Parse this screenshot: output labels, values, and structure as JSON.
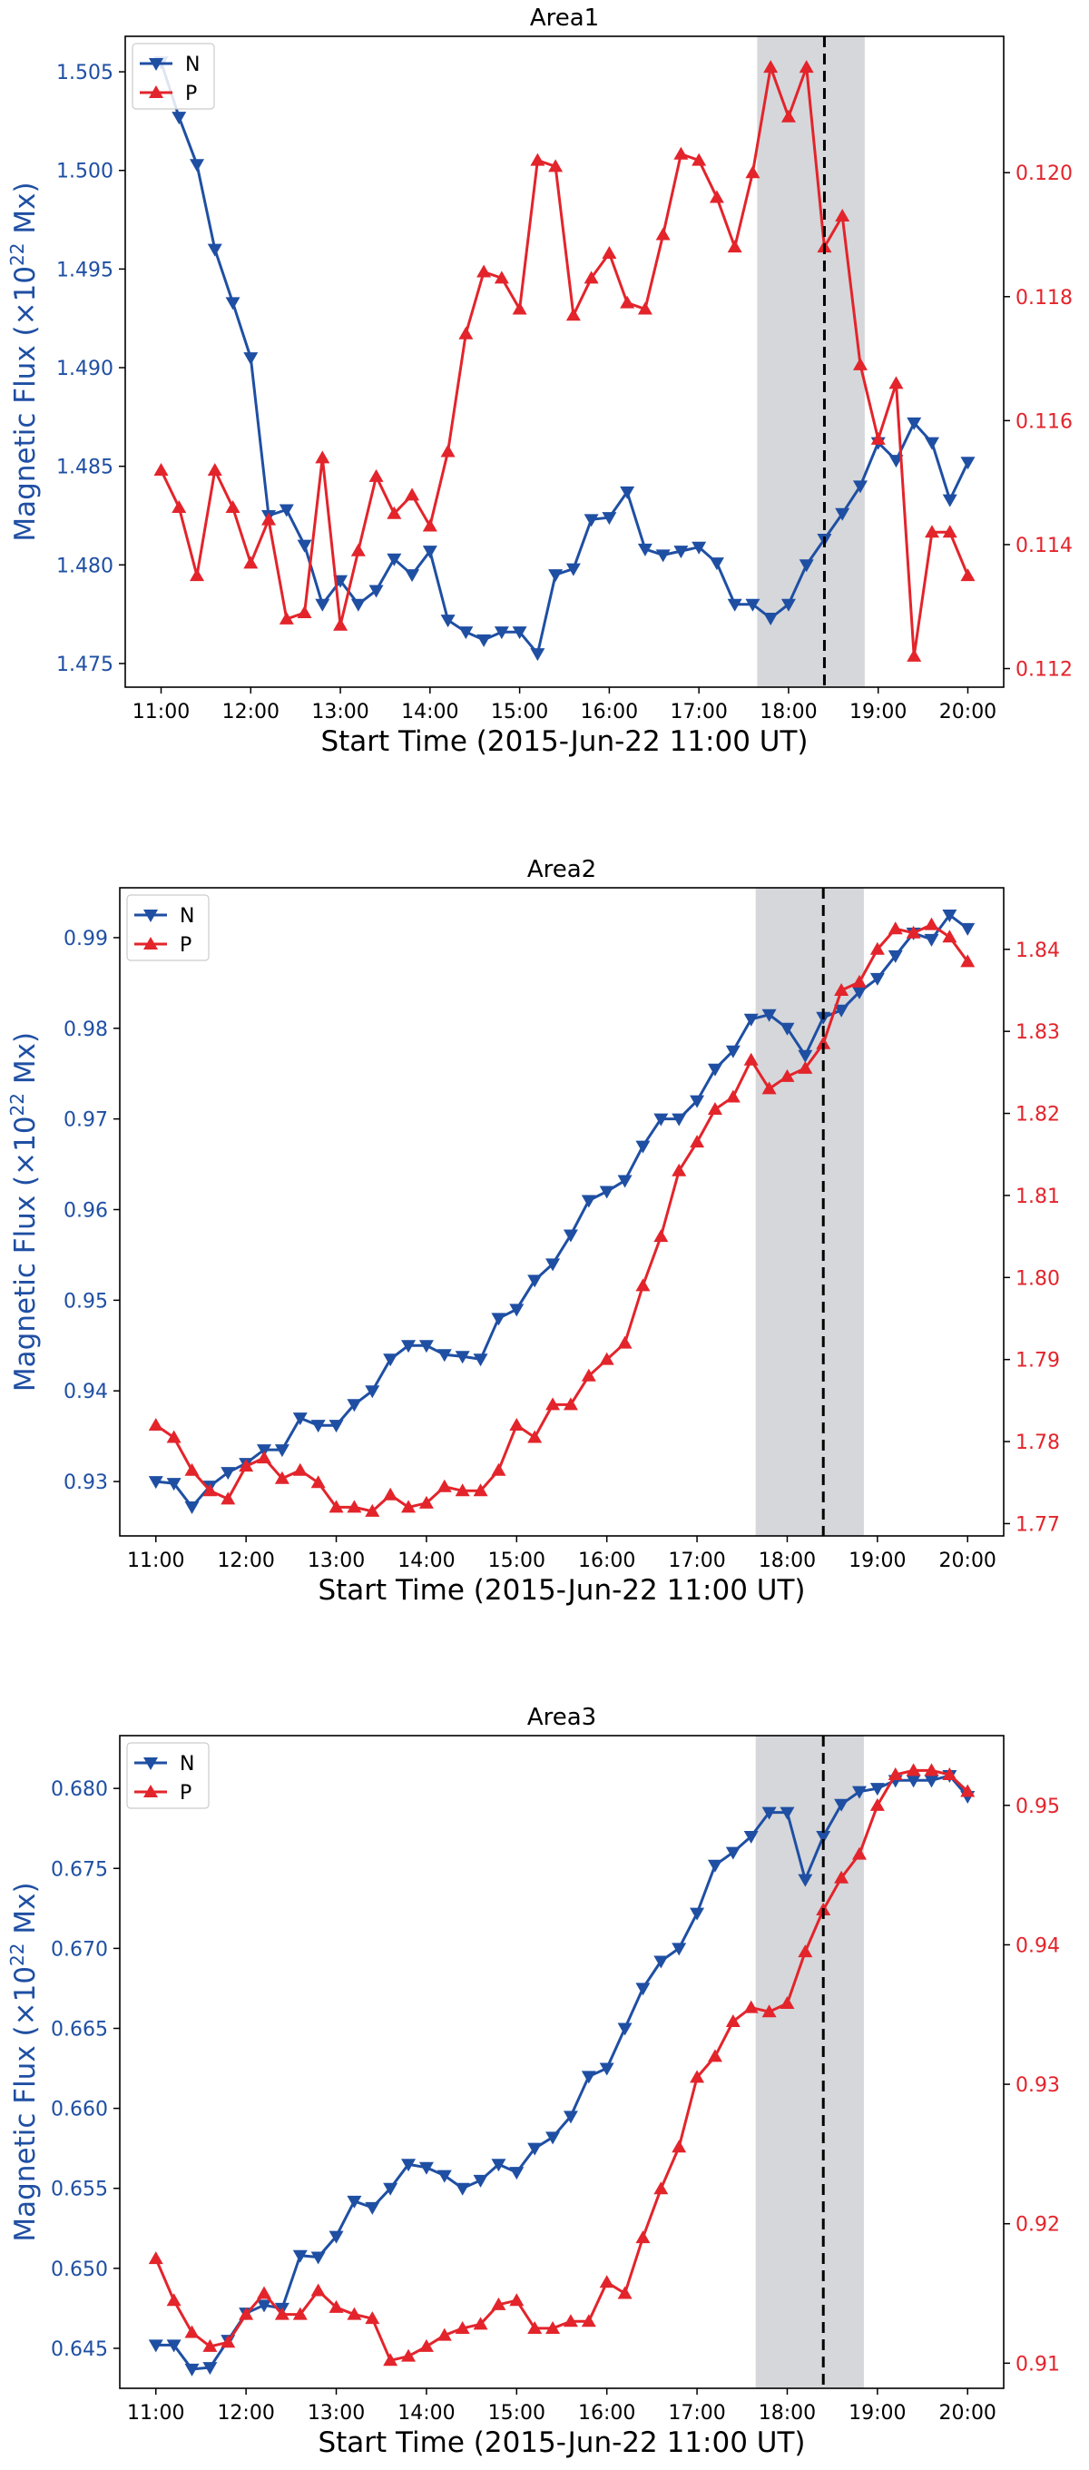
{
  "colors": {
    "negative": "#1f4fa3",
    "positive": "#e3242b",
    "shade": "#d5d7da",
    "axis": "#000000"
  },
  "common": {
    "xlabel": "Start Time (2015-Jun-22 11:00 UT)",
    "ylabel_left_prefix": "Magnetic Flux (×10",
    "ylabel_left_exp": "22",
    "ylabel_left_suffix": " Mx)",
    "xticks": [
      "11:00",
      "12:00",
      "13:00",
      "14:00",
      "15:00",
      "16:00",
      "17:00",
      "18:00",
      "19:00",
      "20:00"
    ],
    "shade_range_hours": [
      17.65,
      18.85
    ],
    "event_time_hours": 18.4
  },
  "chart_data": [
    {
      "type": "line",
      "title": "Area1",
      "legend": [
        "N",
        "P"
      ],
      "xlim": [
        10.6,
        20.4
      ],
      "ylim_left": [
        1.4738,
        1.5068
      ],
      "ylim_right": [
        0.1117,
        0.1222
      ],
      "yticks_left": [
        "1.475",
        "1.480",
        "1.485",
        "1.490",
        "1.495",
        "1.500",
        "1.505"
      ],
      "yticks_right": [
        "0.112",
        "0.114",
        "0.116",
        "0.118",
        "0.120"
      ],
      "x": [
        11.0,
        11.2,
        11.4,
        11.6,
        11.8,
        12.0,
        12.2,
        12.4,
        12.6,
        12.8,
        13.0,
        13.2,
        13.4,
        13.6,
        13.8,
        14.0,
        14.2,
        14.4,
        14.6,
        14.8,
        15.0,
        15.2,
        15.4,
        15.6,
        15.8,
        16.0,
        16.2,
        16.4,
        16.6,
        16.8,
        17.0,
        17.2,
        17.4,
        17.6,
        17.8,
        18.0,
        18.2,
        18.4,
        18.6,
        18.8,
        19.0,
        19.2,
        19.4,
        19.6,
        19.8,
        20.0
      ],
      "series": [
        {
          "name": "N",
          "axis": "left",
          "marker": "triangle-down",
          "values": [
            1.5055,
            1.5027,
            1.5003,
            1.496,
            1.4933,
            1.4905,
            1.4825,
            1.4828,
            1.481,
            1.478,
            1.4792,
            1.478,
            1.4787,
            1.4803,
            1.4795,
            1.4807,
            1.4772,
            1.4766,
            1.4762,
            1.4766,
            1.4766,
            1.4755,
            1.4795,
            1.4798,
            1.4823,
            1.4824,
            1.4837,
            1.4808,
            1.4805,
            1.4807,
            1.4809,
            1.4801,
            1.478,
            1.478,
            1.4773,
            1.478,
            1.48,
            1.4813,
            1.4826,
            1.484,
            1.4862,
            1.4853,
            1.4872,
            1.4862,
            1.4833,
            1.4852
          ]
        },
        {
          "name": "P",
          "axis": "right",
          "marker": "triangle-up",
          "values": [
            0.1152,
            0.1146,
            0.1135,
            0.1152,
            0.1146,
            0.1137,
            0.1144,
            0.1128,
            0.1129,
            0.1154,
            0.1127,
            0.1139,
            0.1151,
            0.1145,
            0.1148,
            0.1143,
            0.1155,
            0.1174,
            0.1184,
            0.1183,
            0.1178,
            0.1202,
            0.1201,
            0.1177,
            0.1183,
            0.1187,
            0.1179,
            0.1178,
            0.119,
            0.1203,
            0.1202,
            0.1196,
            0.1188,
            0.12,
            0.1217,
            0.1209,
            0.1217,
            0.1188,
            0.1193,
            0.1169,
            0.1157,
            0.1166,
            0.1122,
            0.1142,
            0.1142,
            0.1135
          ]
        }
      ]
    },
    {
      "type": "line",
      "title": "Area2",
      "legend": [
        "N",
        "P"
      ],
      "xlim": [
        10.6,
        20.4
      ],
      "ylim_left": [
        0.924,
        0.9955
      ],
      "ylim_right": [
        1.7685,
        1.8475
      ],
      "yticks_left": [
        "0.93",
        "0.94",
        "0.95",
        "0.96",
        "0.97",
        "0.98",
        "0.99"
      ],
      "yticks_right": [
        "1.77",
        "1.78",
        "1.79",
        "1.80",
        "1.81",
        "1.82",
        "1.83",
        "1.84"
      ],
      "x": [
        11.0,
        11.2,
        11.4,
        11.6,
        11.8,
        12.0,
        12.2,
        12.4,
        12.6,
        12.8,
        13.0,
        13.2,
        13.4,
        13.6,
        13.8,
        14.0,
        14.2,
        14.4,
        14.6,
        14.8,
        15.0,
        15.2,
        15.4,
        15.6,
        15.8,
        16.0,
        16.2,
        16.4,
        16.6,
        16.8,
        17.0,
        17.2,
        17.4,
        17.6,
        17.8,
        18.0,
        18.2,
        18.4,
        18.6,
        18.8,
        19.0,
        19.2,
        19.4,
        19.6,
        19.8,
        20.0
      ],
      "series": [
        {
          "name": "N",
          "axis": "left",
          "marker": "triangle-down",
          "values": [
            0.93,
            0.9298,
            0.9272,
            0.9295,
            0.931,
            0.932,
            0.9335,
            0.9335,
            0.937,
            0.9362,
            0.9362,
            0.9385,
            0.94,
            0.9435,
            0.945,
            0.945,
            0.944,
            0.9438,
            0.9435,
            0.948,
            0.949,
            0.9522,
            0.954,
            0.9572,
            0.961,
            0.962,
            0.9632,
            0.967,
            0.97,
            0.97,
            0.972,
            0.9755,
            0.9775,
            0.981,
            0.9815,
            0.98,
            0.977,
            0.9812,
            0.982,
            0.984,
            0.9855,
            0.988,
            0.9905,
            0.9898,
            0.9925,
            0.991
          ]
        },
        {
          "name": "P",
          "axis": "right",
          "marker": "triangle-up",
          "values": [
            1.782,
            1.7805,
            1.7765,
            1.774,
            1.773,
            1.777,
            1.778,
            1.7755,
            1.7765,
            1.775,
            1.772,
            1.772,
            1.7715,
            1.7735,
            1.772,
            1.7725,
            1.7745,
            1.774,
            1.774,
            1.7765,
            1.782,
            1.7805,
            1.7845,
            1.7845,
            1.788,
            1.79,
            1.792,
            1.799,
            1.805,
            1.813,
            1.8165,
            1.8205,
            1.822,
            1.8265,
            1.823,
            1.8245,
            1.8255,
            1.8285,
            1.835,
            1.836,
            1.84,
            1.8425,
            1.842,
            1.843,
            1.8415,
            1.8385
          ]
        }
      ]
    },
    {
      "type": "line",
      "title": "Area3",
      "legend": [
        "N",
        "P"
      ],
      "xlim": [
        10.6,
        20.4
      ],
      "ylim_left": [
        0.6425,
        0.6833
      ],
      "ylim_right": [
        0.9082,
        0.955
      ],
      "yticks_left": [
        "0.645",
        "0.650",
        "0.655",
        "0.660",
        "0.665",
        "0.670",
        "0.675",
        "0.680"
      ],
      "yticks_right": [
        "0.91",
        "0.92",
        "0.93",
        "0.94",
        "0.95"
      ],
      "x": [
        11.0,
        11.2,
        11.4,
        11.6,
        11.8,
        12.0,
        12.2,
        12.4,
        12.6,
        12.8,
        13.0,
        13.2,
        13.4,
        13.6,
        13.8,
        14.0,
        14.2,
        14.4,
        14.6,
        14.8,
        15.0,
        15.2,
        15.4,
        15.6,
        15.8,
        16.0,
        16.2,
        16.4,
        16.6,
        16.8,
        17.0,
        17.2,
        17.4,
        17.6,
        17.8,
        18.0,
        18.2,
        18.4,
        18.6,
        18.8,
        19.0,
        19.2,
        19.4,
        19.6,
        19.8,
        20.0
      ],
      "series": [
        {
          "name": "N",
          "axis": "left",
          "marker": "triangle-down",
          "values": [
            0.6452,
            0.6452,
            0.6437,
            0.6438,
            0.6455,
            0.6472,
            0.6477,
            0.6475,
            0.6508,
            0.6507,
            0.652,
            0.6542,
            0.6538,
            0.655,
            0.6565,
            0.6563,
            0.6558,
            0.655,
            0.6555,
            0.6565,
            0.656,
            0.6575,
            0.6582,
            0.6595,
            0.662,
            0.6625,
            0.665,
            0.6675,
            0.6692,
            0.67,
            0.6722,
            0.6752,
            0.676,
            0.677,
            0.6785,
            0.6785,
            0.6743,
            0.677,
            0.679,
            0.6798,
            0.68,
            0.6805,
            0.6805,
            0.6805,
            0.6808,
            0.6795
          ]
        },
        {
          "name": "P",
          "axis": "right",
          "marker": "triangle-up",
          "values": [
            0.9175,
            0.9145,
            0.9122,
            0.9112,
            0.9115,
            0.9135,
            0.915,
            0.9135,
            0.9135,
            0.9152,
            0.914,
            0.9135,
            0.9132,
            0.9102,
            0.9105,
            0.9112,
            0.912,
            0.9125,
            0.9128,
            0.9142,
            0.9145,
            0.9125,
            0.9125,
            0.913,
            0.913,
            0.9158,
            0.915,
            0.919,
            0.9225,
            0.9255,
            0.9305,
            0.932,
            0.9345,
            0.9355,
            0.9352,
            0.9358,
            0.9395,
            0.9425,
            0.9448,
            0.9465,
            0.95,
            0.9522,
            0.9525,
            0.9525,
            0.9522,
            0.951
          ]
        }
      ]
    }
  ]
}
